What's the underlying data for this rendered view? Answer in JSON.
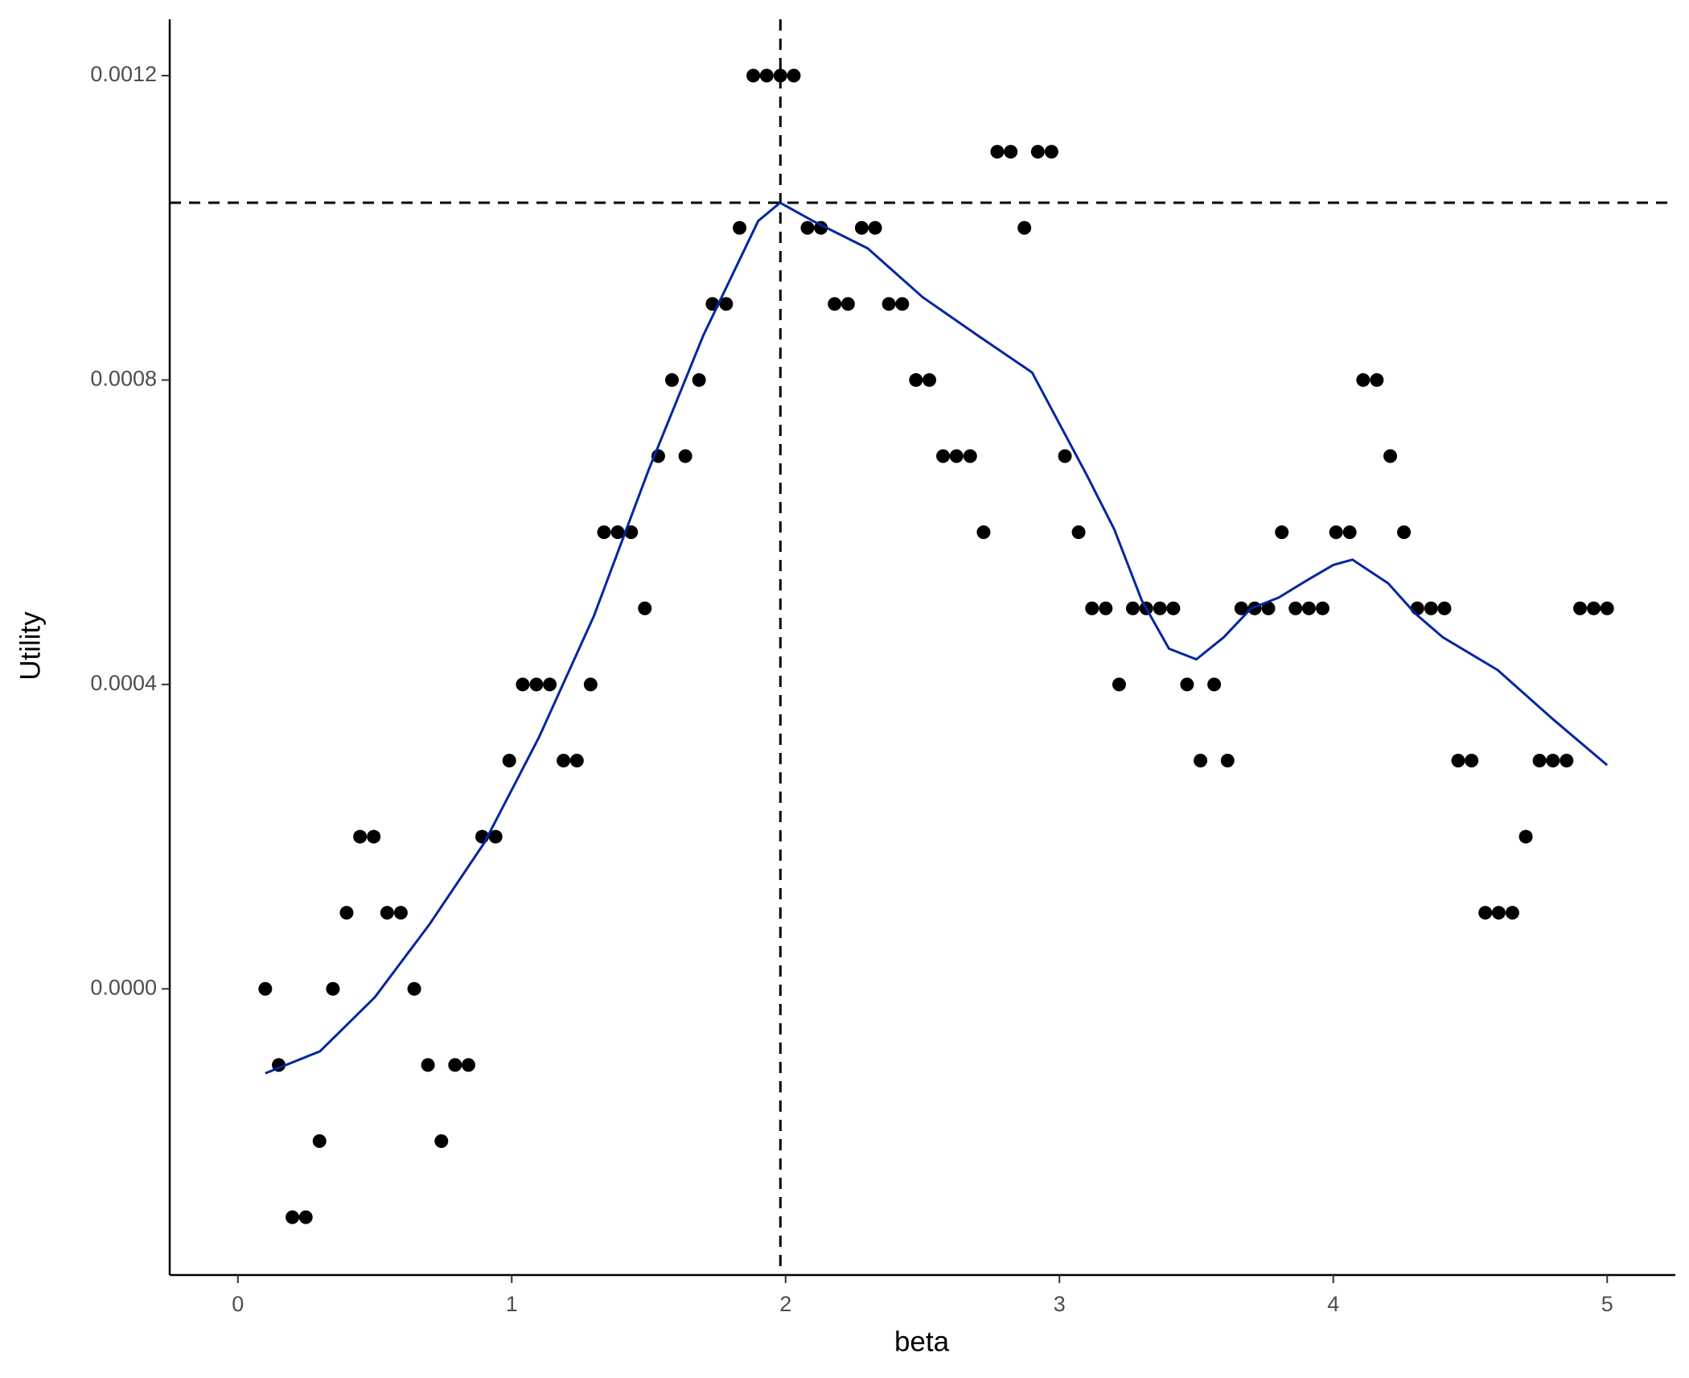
{
  "chart_data": {
    "type": "scatter",
    "x_label": "beta",
    "y_label": "Utility",
    "xlim": [
      -0.249,
      5.249
    ],
    "ylim": [
      -0.000376,
      0.001274
    ],
    "xticks": [
      0,
      1,
      2,
      3,
      4,
      5
    ],
    "yticks": [
      {
        "value": 0,
        "label": "0.0000"
      },
      0.0004,
      0.0008,
      0.0012
    ],
    "grid": false,
    "points": {
      "color": "#000000",
      "x": [
        0.1,
        0.149,
        0.199,
        0.248,
        0.298,
        0.347,
        0.397,
        0.446,
        0.496,
        0.545,
        0.595,
        0.644,
        0.694,
        0.743,
        0.793,
        0.842,
        0.892,
        0.941,
        0.991,
        1.04,
        1.09,
        1.139,
        1.189,
        1.238,
        1.288,
        1.337,
        1.387,
        1.436,
        1.486,
        1.535,
        1.585,
        1.634,
        1.684,
        1.733,
        1.783,
        1.832,
        1.882,
        1.931,
        1.981,
        2.03,
        2.08,
        2.129,
        2.179,
        2.228,
        2.278,
        2.327,
        2.377,
        2.426,
        2.476,
        2.525,
        2.575,
        2.624,
        2.674,
        2.723,
        2.773,
        2.822,
        2.872,
        2.921,
        2.971,
        3.02,
        3.07,
        3.119,
        3.169,
        3.218,
        3.268,
        3.317,
        3.367,
        3.416,
        3.466,
        3.515,
        3.565,
        3.614,
        3.664,
        3.713,
        3.763,
        3.812,
        3.862,
        3.911,
        3.961,
        4.01,
        4.06,
        4.109,
        4.159,
        4.208,
        4.258,
        4.307,
        4.357,
        4.406,
        4.456,
        4.505,
        4.555,
        4.604,
        4.654,
        4.703,
        4.753,
        4.802,
        4.852,
        4.901,
        4.951,
        5.0
      ],
      "y": [
        0,
        -0.0001,
        -0.0003,
        -0.0003,
        -0.0002,
        0,
        0.0001,
        0.0002,
        0.0002,
        0.0001,
        0.0001,
        0,
        -0.0001,
        -0.0002,
        -0.0001,
        -0.0001,
        0.0002,
        0.0002,
        0.0003,
        0.0004,
        0.0004,
        0.0004,
        0.0003,
        0.0003,
        0.0004,
        0.0006,
        0.0006,
        0.0006,
        0.0005,
        0.0007,
        0.0008,
        0.0007,
        0.0008,
        0.0009,
        0.0009,
        0.001,
        0.0012,
        0.0012,
        0.0012,
        0.0012,
        0.001,
        0.001,
        0.0009,
        0.0009,
        0.001,
        0.001,
        0.0009,
        0.0009,
        0.0008,
        0.0008,
        0.0007,
        0.0007,
        0.0007,
        0.0006,
        0.0011,
        0.0011,
        0.001,
        0.0011,
        0.0011,
        0.0007,
        0.0006,
        0.0005,
        0.0005,
        0.0004,
        0.0005,
        0.0005,
        0.0005,
        0.0005,
        0.0004,
        0.0003,
        0.0004,
        0.0003,
        0.0005,
        0.0005,
        0.0005,
        0.0006,
        0.0005,
        0.0005,
        0.0005,
        0.0006,
        0.0006,
        0.0008,
        0.0008,
        0.0007,
        0.0006,
        0.0005,
        0.0005,
        0.0005,
        0.0003,
        0.0003,
        0.0001,
        0.0001,
        0.0001,
        0.0002,
        0.0003,
        0.0003,
        0.0003,
        0.0005,
        0.0005,
        0.0005
      ]
    },
    "smooth": {
      "color": "#0026a0",
      "x": [
        0.1,
        0.3,
        0.5,
        0.7,
        0.9,
        1.1,
        1.3,
        1.5,
        1.7,
        1.9,
        1.98,
        2.1,
        2.3,
        2.5,
        2.7,
        2.9,
        3.1,
        3.2,
        3.3,
        3.4,
        3.5,
        3.6,
        3.7,
        3.8,
        3.9,
        4.0,
        4.07,
        4.2,
        4.3,
        4.4,
        4.6,
        4.8,
        5.0
      ],
      "y": [
        -0.000111,
        -8.2e-05,
        -1.1e-05,
        8.5e-05,
        0.000192,
        0.000331,
        0.00049,
        0.000682,
        0.000859,
        0.001009,
        0.001033,
        0.001009,
        0.000973,
        0.000909,
        0.000859,
        0.00081,
        0.000675,
        0.000604,
        0.000511,
        0.000447,
        0.000433,
        0.000462,
        0.0005,
        0.000514,
        0.000536,
        0.000557,
        0.000564,
        0.000533,
        0.000493,
        0.000462,
        0.000419,
        0.000355,
        0.000294
      ]
    },
    "hline": 0.001033,
    "vline": 1.981,
    "reference_line_color": "#000000"
  }
}
